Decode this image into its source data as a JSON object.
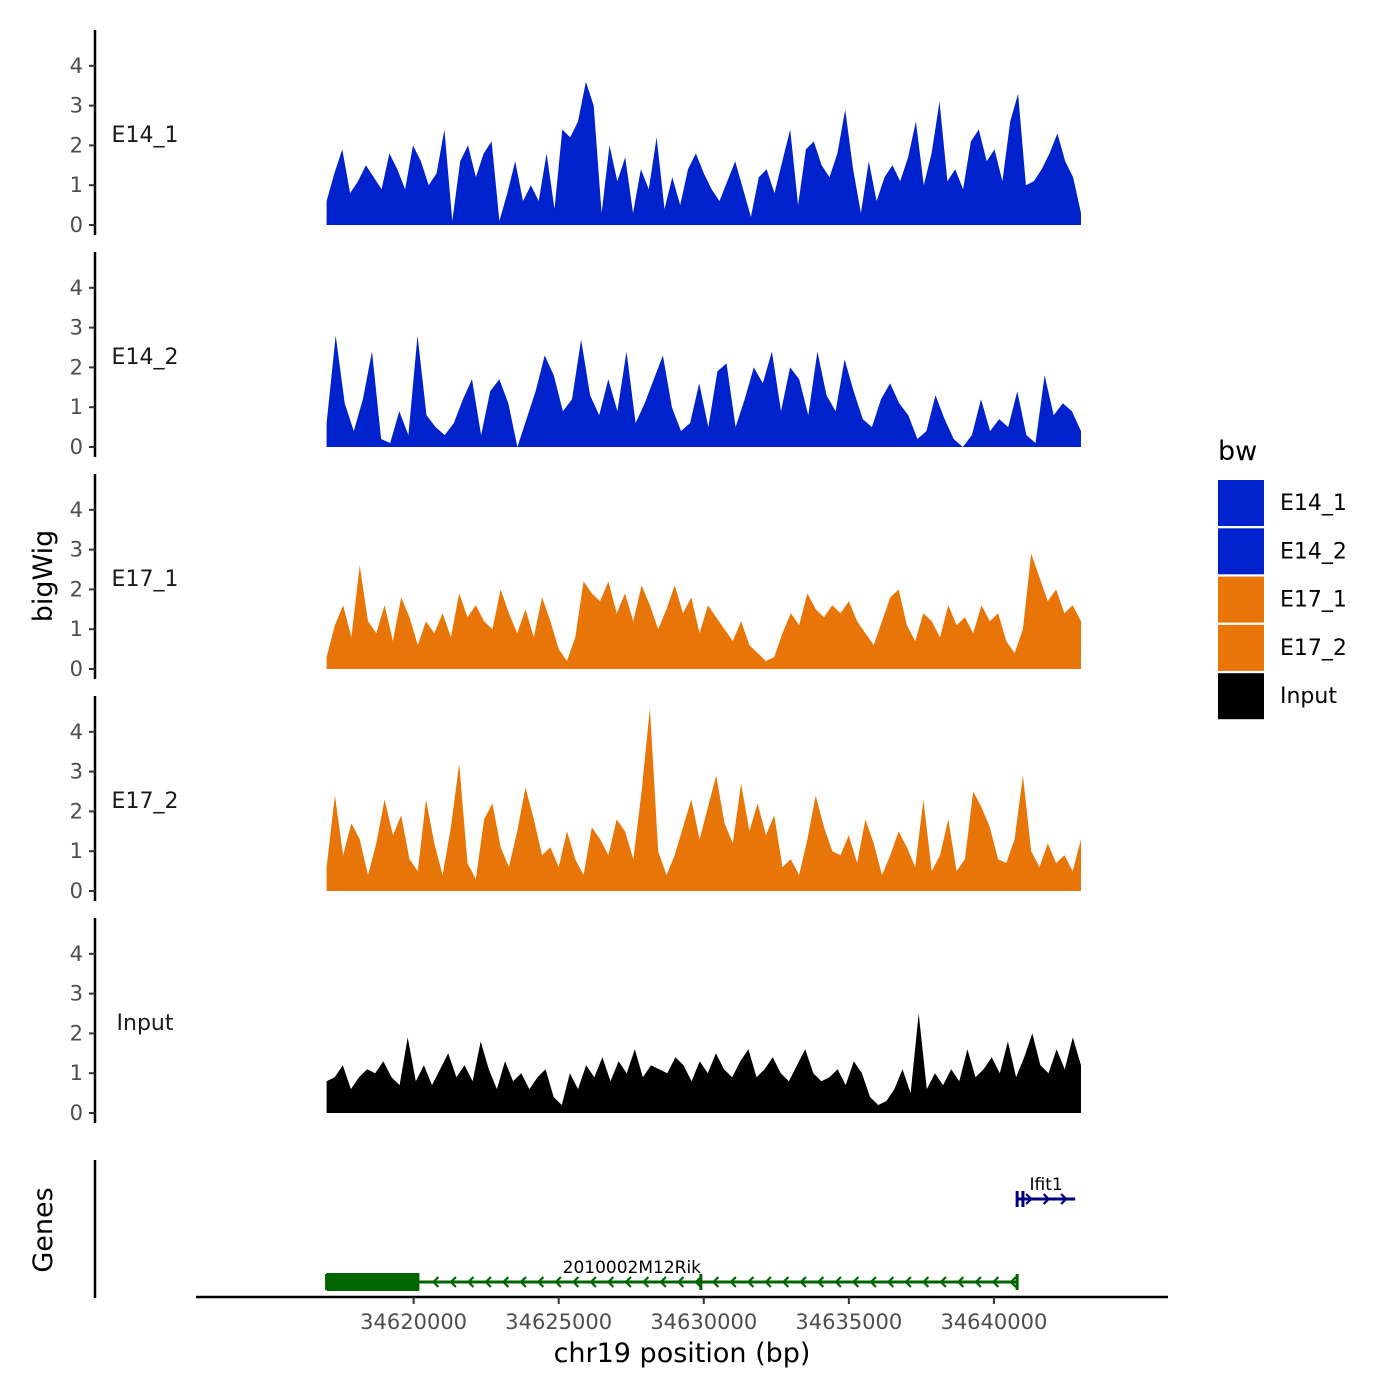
{
  "chart_data": {
    "type": "area",
    "title": "",
    "ylabel": "bigWig",
    "genes_label": "Genes",
    "xlabel": "chr19 position (bp)",
    "x_range": [
      34617000,
      34643000
    ],
    "xlim": [
      34612500,
      34646000
    ],
    "x_ticks": [
      34620000,
      34625000,
      34630000,
      34635000,
      34640000
    ],
    "x_tick_labels": [
      "34620000",
      "34625000",
      "34630000",
      "34635000",
      "34640000"
    ],
    "ylim": [
      0,
      4.9
    ],
    "y_ticks": [
      0,
      1,
      2,
      3,
      4
    ],
    "y_tick_labels": [
      "0",
      "1",
      "2",
      "3",
      "4"
    ],
    "legend": {
      "title": "bw",
      "entries": [
        {
          "label": "E14_1",
          "color": "#0022CC"
        },
        {
          "label": "E14_2",
          "color": "#0022CC"
        },
        {
          "label": "E17_1",
          "color": "#E87508"
        },
        {
          "label": "E17_2",
          "color": "#E87508"
        },
        {
          "label": "Input",
          "color": "#000000"
        }
      ]
    },
    "series": [
      {
        "name": "E14_1",
        "color": "#0022CC",
        "values": [
          0.6,
          1.3,
          1.9,
          0.8,
          1.1,
          1.5,
          1.2,
          0.9,
          1.8,
          1.4,
          0.9,
          2.0,
          1.6,
          1.0,
          1.3,
          2.4,
          0.1,
          1.6,
          2.0,
          1.2,
          1.8,
          2.1,
          0.1,
          0.8,
          1.6,
          0.6,
          1.0,
          0.6,
          1.8,
          0.4,
          2.4,
          2.2,
          2.6,
          3.6,
          3.0,
          0.3,
          2.0,
          1.1,
          1.7,
          0.3,
          1.4,
          0.9,
          2.2,
          0.4,
          1.2,
          0.5,
          1.4,
          1.8,
          1.3,
          0.9,
          0.6,
          1.1,
          1.6,
          0.9,
          0.2,
          1.2,
          1.4,
          0.8,
          1.6,
          2.4,
          0.5,
          1.9,
          2.1,
          1.5,
          1.2,
          1.8,
          2.9,
          1.4,
          0.3,
          1.6,
          0.6,
          1.2,
          1.5,
          1.1,
          1.7,
          2.6,
          1.0,
          1.8,
          3.1,
          1.1,
          1.4,
          0.9,
          2.1,
          2.4,
          1.6,
          1.9,
          1.1,
          2.6,
          3.3,
          1.0,
          1.1,
          1.4,
          1.8,
          2.3,
          1.6,
          1.2,
          0.3
        ]
      },
      {
        "name": "E14_2",
        "color": "#0022CC",
        "values": [
          0.6,
          2.8,
          1.1,
          0.4,
          1.2,
          2.4,
          0.2,
          0.1,
          0.9,
          0.3,
          2.8,
          0.8,
          0.5,
          0.3,
          0.6,
          1.2,
          1.7,
          0.3,
          1.4,
          1.7,
          1.1,
          0.0,
          0.7,
          1.4,
          2.3,
          1.8,
          0.9,
          1.2,
          2.7,
          1.3,
          0.8,
          1.7,
          0.9,
          2.4,
          0.6,
          1.1,
          1.7,
          2.3,
          1.0,
          0.4,
          0.6,
          1.6,
          0.5,
          1.9,
          2.1,
          0.5,
          1.2,
          2.0,
          1.6,
          2.4,
          0.9,
          2.0,
          1.7,
          0.8,
          2.4,
          1.3,
          0.9,
          2.2,
          1.4,
          0.7,
          0.5,
          1.2,
          1.6,
          1.1,
          0.8,
          0.2,
          0.4,
          1.3,
          0.7,
          0.2,
          0.0,
          0.3,
          1.2,
          0.4,
          0.7,
          0.5,
          1.4,
          0.3,
          0.1,
          1.8,
          0.8,
          1.1,
          0.9,
          0.4
        ]
      },
      {
        "name": "E17_1",
        "color": "#E87508",
        "values": [
          0.3,
          1.1,
          1.6,
          0.8,
          2.6,
          1.2,
          0.9,
          1.6,
          0.7,
          1.8,
          1.3,
          0.6,
          1.2,
          0.9,
          1.4,
          0.8,
          1.9,
          1.3,
          1.6,
          1.2,
          1.0,
          2.0,
          1.4,
          0.9,
          1.5,
          0.8,
          1.8,
          1.2,
          0.5,
          0.2,
          0.8,
          2.2,
          1.9,
          1.7,
          2.2,
          1.4,
          1.9,
          1.2,
          2.1,
          1.6,
          1.0,
          1.5,
          2.1,
          1.4,
          1.8,
          0.9,
          1.6,
          1.3,
          1.0,
          0.7,
          1.2,
          0.6,
          0.4,
          0.2,
          0.3,
          0.9,
          1.4,
          1.1,
          1.9,
          1.5,
          1.3,
          1.6,
          1.4,
          1.7,
          1.2,
          0.9,
          0.6,
          1.2,
          1.8,
          2.0,
          1.1,
          0.7,
          1.4,
          1.2,
          0.8,
          1.6,
          1.1,
          1.3,
          0.9,
          1.6,
          1.2,
          1.4,
          0.7,
          0.4,
          1.0,
          2.9,
          2.3,
          1.7,
          2.0,
          1.4,
          1.6,
          1.2
        ]
      },
      {
        "name": "E17_2",
        "color": "#E87508",
        "values": [
          0.6,
          2.4,
          0.9,
          1.7,
          1.3,
          0.4,
          1.2,
          2.3,
          1.4,
          1.9,
          0.8,
          0.5,
          2.3,
          1.2,
          0.4,
          1.6,
          3.2,
          0.7,
          0.3,
          1.8,
          2.2,
          1.1,
          0.6,
          1.5,
          2.6,
          1.8,
          0.9,
          1.1,
          0.6,
          1.5,
          0.8,
          0.4,
          1.6,
          1.3,
          0.9,
          1.8,
          1.5,
          0.8,
          2.5,
          4.6,
          1.0,
          0.4,
          0.9,
          1.6,
          2.3,
          1.3,
          2.1,
          2.9,
          1.7,
          1.2,
          2.7,
          1.5,
          2.2,
          1.4,
          1.9,
          0.6,
          0.8,
          0.4,
          1.3,
          2.4,
          1.6,
          1.0,
          0.9,
          1.4,
          0.7,
          1.8,
          1.2,
          0.4,
          0.9,
          1.5,
          1.1,
          0.6,
          2.3,
          0.5,
          0.9,
          1.8,
          0.5,
          0.8,
          2.5,
          2.1,
          1.6,
          0.8,
          0.7,
          1.3,
          2.9,
          1.0,
          0.6,
          1.2,
          0.7,
          0.9,
          0.5,
          1.3
        ]
      },
      {
        "name": "Input",
        "color": "#000000",
        "values": [
          0.8,
          0.9,
          1.2,
          0.6,
          0.9,
          1.1,
          1.0,
          1.3,
          0.9,
          0.7,
          1.9,
          0.8,
          1.2,
          0.7,
          1.1,
          1.5,
          0.9,
          1.2,
          0.8,
          1.8,
          1.1,
          0.6,
          1.3,
          0.8,
          1.0,
          0.6,
          0.9,
          1.1,
          0.4,
          0.2,
          1.0,
          0.6,
          1.2,
          0.9,
          1.4,
          0.8,
          1.3,
          1.0,
          1.6,
          0.9,
          1.2,
          1.1,
          1.0,
          1.4,
          1.2,
          0.8,
          1.3,
          1.0,
          1.5,
          1.1,
          0.9,
          1.3,
          1.6,
          0.9,
          1.1,
          1.4,
          1.0,
          0.8,
          1.2,
          1.6,
          1.0,
          0.8,
          0.9,
          1.1,
          0.7,
          1.3,
          1.0,
          0.4,
          0.2,
          0.3,
          0.6,
          1.1,
          0.5,
          2.5,
          0.6,
          1.0,
          0.7,
          1.1,
          0.8,
          1.6,
          0.9,
          1.1,
          1.4,
          1.0,
          1.8,
          0.9,
          1.4,
          2.0,
          1.2,
          1.0,
          1.6,
          1.1,
          1.9,
          1.2
        ]
      }
    ],
    "genes": [
      {
        "name": "2010002M12Rik",
        "start": 34617000,
        "end": 34640800,
        "strand": "-",
        "color": "#006400",
        "thick_start": 34617000,
        "thick_end": 34620200,
        "exons": [
          34617000,
          34629900,
          34640800
        ]
      },
      {
        "name": "Ifit1",
        "start": 34640800,
        "end": 34642800,
        "strand": "+",
        "color": "#000080",
        "exons": [
          34640800,
          34641000
        ]
      }
    ]
  }
}
